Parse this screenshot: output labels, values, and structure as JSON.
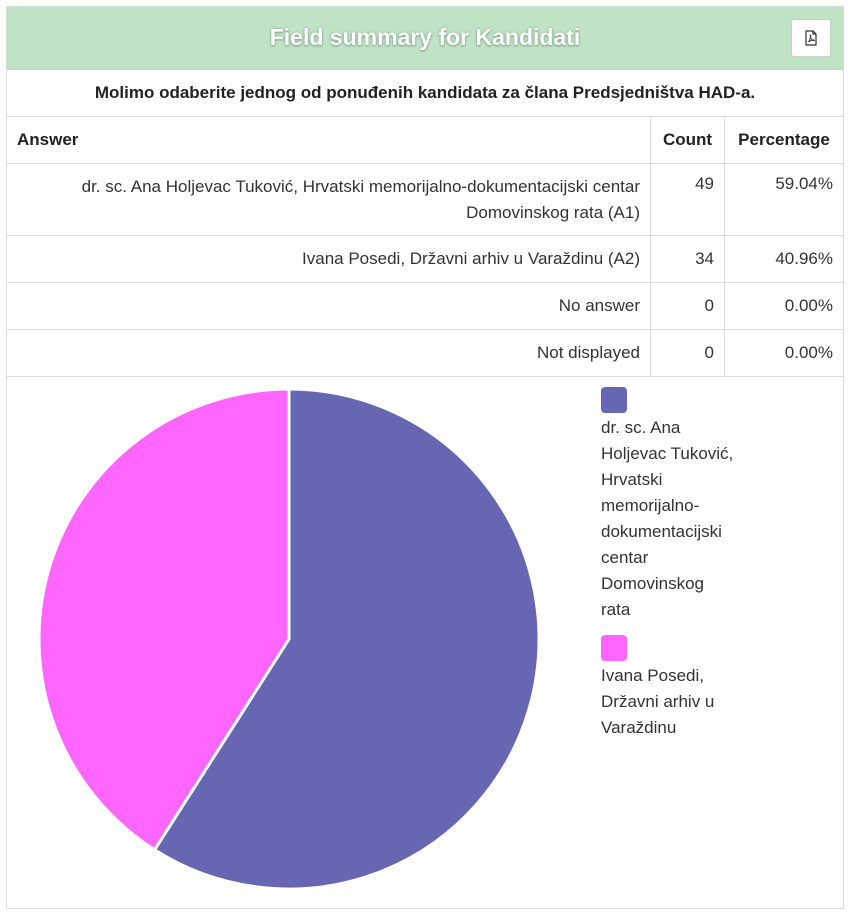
{
  "header": {
    "title": "Field summary for Kandidati"
  },
  "pdf_button": {
    "icon": "pdf-file-icon"
  },
  "question": "Molimo odaberite jednog od ponuđenih kandidata za člana Predsjedništva HAD-a.",
  "table": {
    "headers": {
      "answer": "Answer",
      "count": "Count",
      "percentage": "Percentage"
    },
    "rows": [
      {
        "answer_line1": "dr. sc. Ana Holjevac Tuković, Hrvatski memorijalno-dokumentacijski centar",
        "answer_line2": "Domovinskog rata (A1)",
        "count": "49",
        "percentage": "59.04%"
      },
      {
        "answer": "Ivana Posedi, Državni arhiv u Varaždinu (A2)",
        "count": "34",
        "percentage": "40.96%"
      },
      {
        "answer": "No answer",
        "count": "0",
        "percentage": "0.00%"
      },
      {
        "answer": "Not displayed",
        "count": "0",
        "percentage": "0.00%"
      }
    ]
  },
  "chart_data": {
    "type": "pie",
    "labels": [
      "dr. sc. Ana Holjevac Tuković, Hrvatski memorijalno-dokumentacijski centar Domovinskog rata",
      "Ivana Posedi, Državni arhiv u Varaždinu"
    ],
    "values": [
      49,
      34
    ],
    "colors": [
      "#6666b2",
      "#ff66ff"
    ],
    "legend_position": "right",
    "legend_lines": [
      [
        "dr. sc. Ana",
        "Holjevac Tuković,",
        "Hrvatski",
        "memorijalno-",
        "dokumentacijski",
        "centar",
        "Domovinskog",
        "rata"
      ],
      [
        "Ivana Posedi,",
        "Državni arhiv u",
        "Varaždinu"
      ]
    ]
  }
}
